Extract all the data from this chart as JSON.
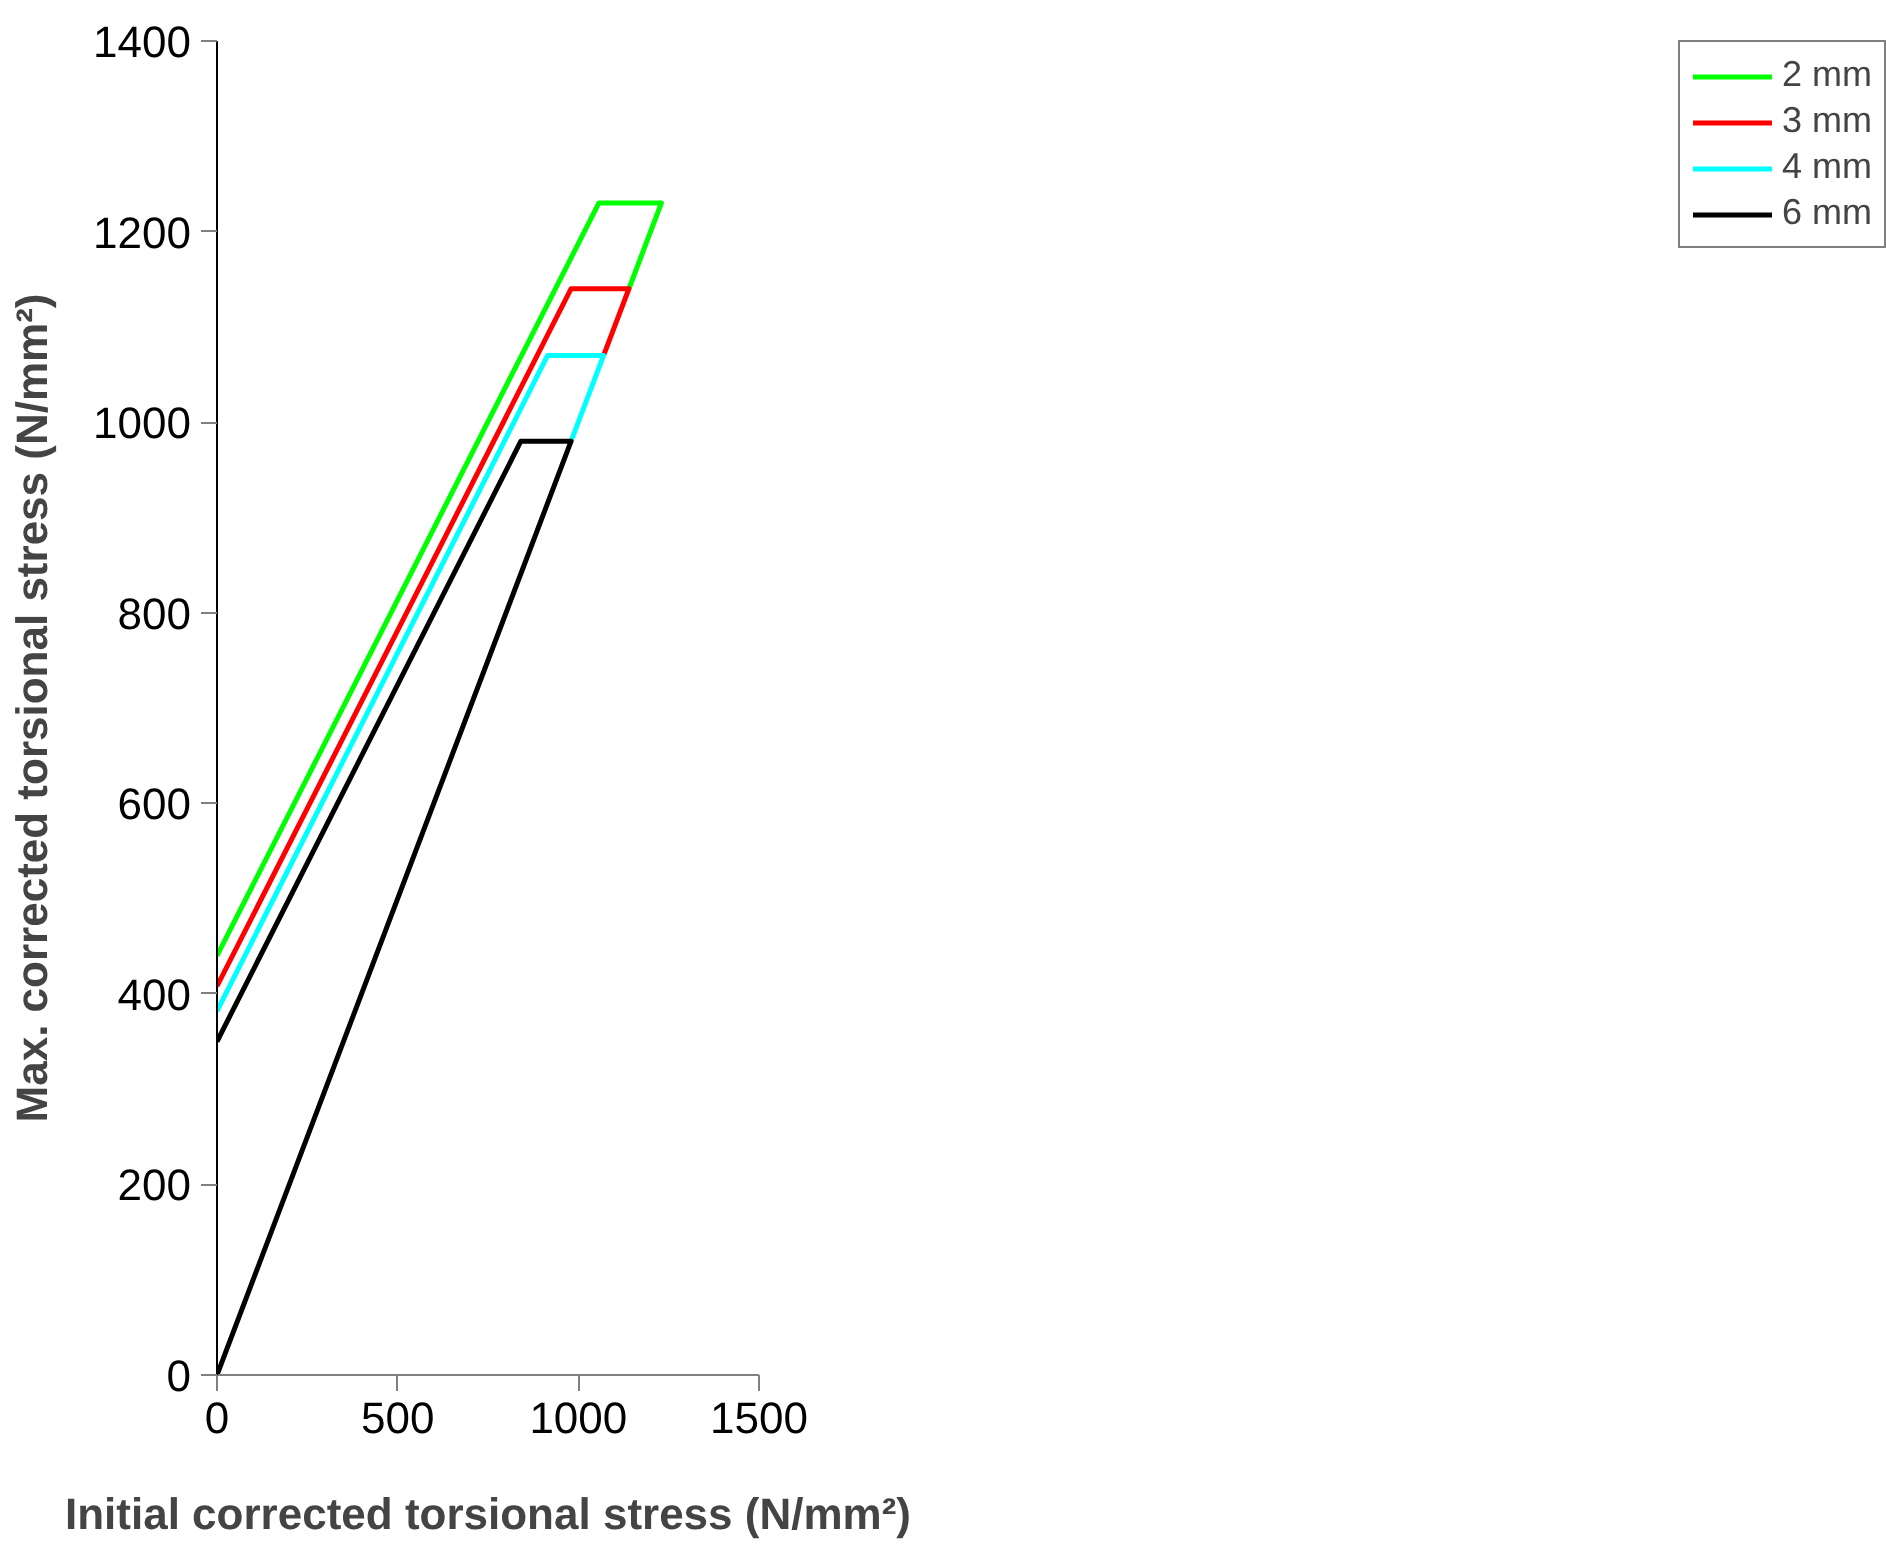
{
  "chart_data": {
    "type": "line",
    "xlabel": "Initial corrected torsional stress (N/mm²)",
    "ylabel": "Max. corrected torsional stress (N/mm²)",
    "xlim": [
      0,
      1500
    ],
    "xticks": [
      0,
      500,
      1000,
      1500
    ],
    "ylim": [
      0,
      1400
    ],
    "yticks": [
      0,
      200,
      400,
      600,
      800,
      1000,
      1200,
      1400
    ],
    "grid": false,
    "legend": "right",
    "marker": "none",
    "line_style": "solid",
    "series": [
      {
        "name": "2 mm",
        "color": "#00ff00",
        "x": [
          0,
          1057,
          1230,
          1140
        ],
        "values": [
          440,
          1230,
          1230,
          1140
        ]
      },
      {
        "name": "3 mm",
        "color": "#ff0000",
        "x": [
          0,
          980,
          1140,
          1070
        ],
        "values": [
          408,
          1140,
          1140,
          1070
        ]
      },
      {
        "name": "4 mm",
        "color": "#00ffff",
        "x": [
          0,
          915,
          1070,
          980
        ],
        "values": [
          382,
          1070,
          1070,
          980
        ]
      },
      {
        "name": "6 mm",
        "color": "#000000",
        "x": [
          0,
          841,
          980,
          0
        ],
        "values": [
          350,
          980,
          980,
          0
        ]
      }
    ]
  }
}
